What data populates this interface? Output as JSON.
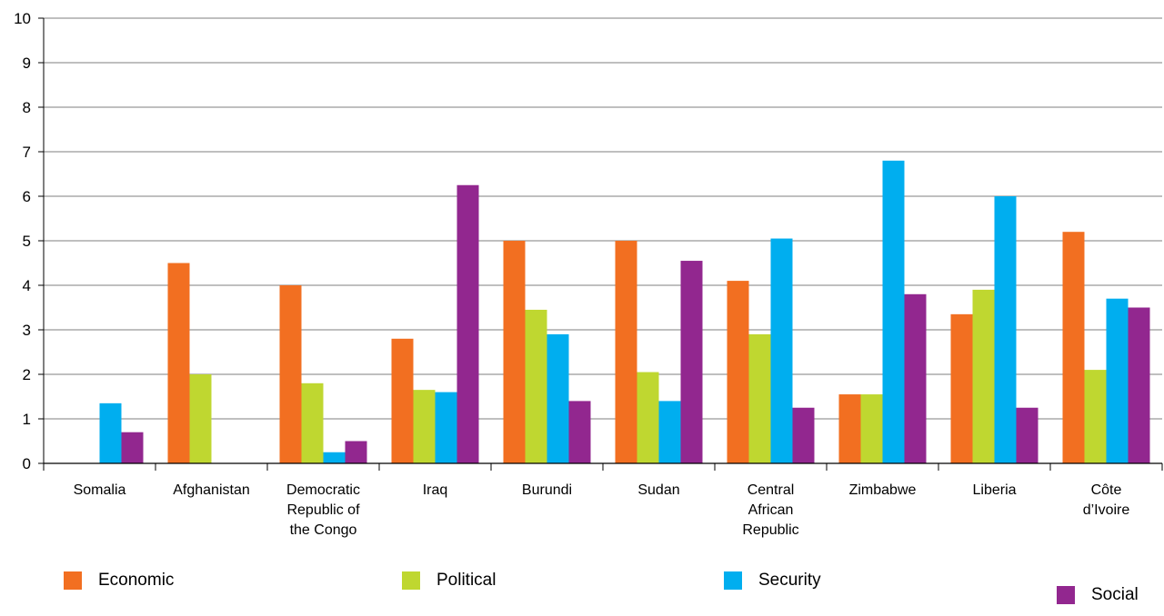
{
  "chart_data": {
    "type": "bar",
    "categories": [
      [
        "Somalia"
      ],
      [
        "Afghanistan"
      ],
      [
        "Democratic",
        "Republic of",
        "the Congo"
      ],
      [
        "Iraq"
      ],
      [
        "Burundi"
      ],
      [
        "Sudan"
      ],
      [
        "Central",
        "African",
        "Republic"
      ],
      [
        "Zimbabwe"
      ],
      [
        "Liberia"
      ],
      [
        "Côte",
        "d’Ivoire"
      ]
    ],
    "series": [
      {
        "name": "Economic",
        "color": "#f26f21",
        "values": [
          0,
          4.5,
          4.0,
          2.8,
          5.0,
          5.0,
          4.1,
          1.55,
          3.35,
          5.2
        ]
      },
      {
        "name": "Political",
        "color": "#bfd730",
        "values": [
          0,
          2.0,
          1.8,
          1.65,
          3.45,
          2.05,
          2.9,
          1.55,
          3.9,
          2.1
        ]
      },
      {
        "name": "Security",
        "color": "#00aeef",
        "values": [
          1.35,
          0,
          0.25,
          1.6,
          2.9,
          1.4,
          5.05,
          6.8,
          6.0,
          3.7
        ]
      },
      {
        "name": "Social",
        "color": "#92278f",
        "values": [
          0.7,
          0,
          0.5,
          6.25,
          1.4,
          4.55,
          1.25,
          3.8,
          1.25,
          3.5
        ]
      }
    ],
    "yticks": [
      "0",
      "1",
      "2",
      "3",
      "4",
      "5",
      "6",
      "7",
      "8",
      "9",
      "10"
    ],
    "ylim": [
      0,
      10
    ],
    "grid": true,
    "legend_position": "bottom"
  }
}
